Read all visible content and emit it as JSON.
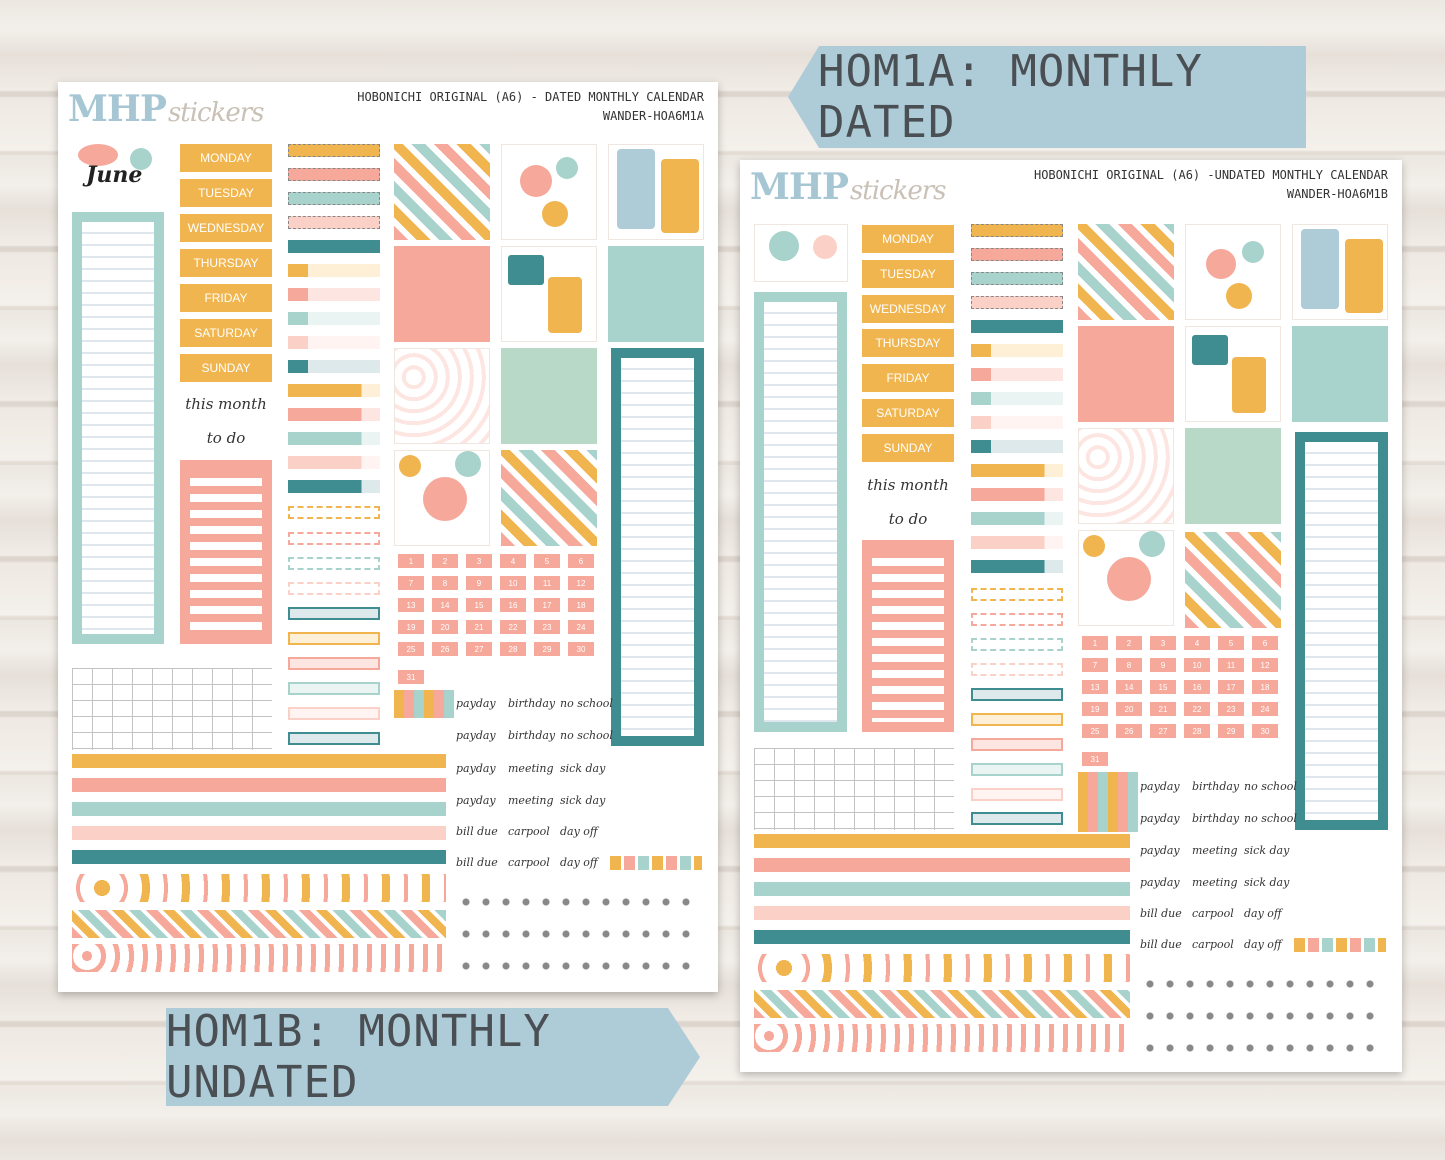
{
  "banners": {
    "dated": "HOM1A: MONTHLY DATED",
    "undated": "HOM1B: MONTHLY UNDATED"
  },
  "sheet_a": {
    "logo_main": "MHP",
    "logo_script": "stickers",
    "title_line1": "HOBONICHI ORIGINAL (A6) - DATED MONTHLY CALENDAR",
    "title_line2": "WANDER-HOA6M1A",
    "month_label": "June"
  },
  "sheet_b": {
    "logo_main": "MHP",
    "logo_script": "stickers",
    "title_line1": "HOBONICHI ORIGINAL (A6) -UNDATED MONTHLY CALENDAR",
    "title_line2": "WANDER-HOA6M1B"
  },
  "days": [
    "MONDAY",
    "TUESDAY",
    "WEDNESDAY",
    "THURSDAY",
    "FRIDAY",
    "SATURDAY",
    "SUNDAY"
  ],
  "this_month": "this month",
  "to_do": "to do",
  "dates": [
    "1",
    "2",
    "3",
    "4",
    "5",
    "6",
    "7",
    "8",
    "9",
    "10",
    "11",
    "12",
    "13",
    "14",
    "15",
    "16",
    "17",
    "18",
    "19",
    "20",
    "21",
    "22",
    "23",
    "24",
    "25",
    "26",
    "27",
    "28",
    "29",
    "30",
    "31"
  ],
  "word_rows": [
    [
      "payday",
      "birthday",
      "no school"
    ],
    [
      "payday",
      "birthday",
      "no school"
    ],
    [
      "payday",
      "meeting",
      "sick day"
    ],
    [
      "payday",
      "meeting",
      "sick day"
    ],
    [
      "bill due",
      "carpool",
      "day off"
    ],
    [
      "bill due",
      "carpool",
      "day off"
    ]
  ],
  "colors": {
    "mustard": "#f0b54e",
    "peach": "#f6a89a",
    "mint": "#a8d3cc",
    "blush": "#fbd0c6",
    "teal": "#3f8d90",
    "banner": "#aecbd8"
  }
}
